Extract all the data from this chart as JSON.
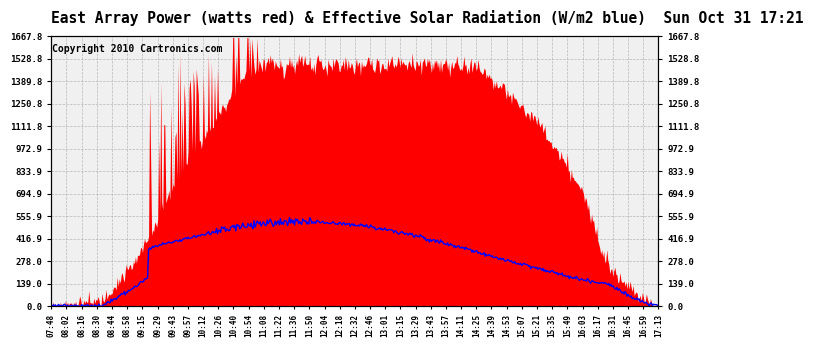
{
  "title": "East Array Power (watts red) & Effective Solar Radiation (W/m2 blue)  Sun Oct 31 17:21",
  "copyright": "Copyright 2010 Cartronics.com",
  "yticks": [
    0.0,
    139.0,
    278.0,
    416.9,
    555.9,
    694.9,
    833.9,
    972.9,
    1111.8,
    1250.8,
    1389.8,
    1528.8,
    1667.8
  ],
  "ytick_labels": [
    "0.0",
    "139.0",
    "278.0",
    "416.9",
    "555.9",
    "694.9",
    "833.9",
    "972.9",
    "1111.8",
    "1250.8",
    "1389.8",
    "1528.8",
    "1667.8"
  ],
  "ylim": [
    0,
    1667.8
  ],
  "xtick_labels": [
    "07:48",
    "08:02",
    "08:16",
    "08:30",
    "08:44",
    "08:58",
    "09:15",
    "09:29",
    "09:43",
    "09:57",
    "10:12",
    "10:26",
    "10:40",
    "10:54",
    "11:08",
    "11:22",
    "11:36",
    "11:50",
    "12:04",
    "12:18",
    "12:32",
    "12:46",
    "13:01",
    "13:15",
    "13:29",
    "13:43",
    "13:57",
    "14:11",
    "14:25",
    "14:39",
    "14:53",
    "15:07",
    "15:21",
    "15:35",
    "15:49",
    "16:03",
    "16:17",
    "16:31",
    "16:45",
    "16:59",
    "17:13"
  ],
  "fig_bg_color": "#ffffff",
  "plot_bg_color": "#f0f0f0",
  "red_fill_color": "#ff0000",
  "blue_line_color": "#0000ff",
  "title_fontsize": 10.5,
  "copyright_fontsize": 7,
  "grid_color": "#aaaaaa",
  "n_points": 600
}
